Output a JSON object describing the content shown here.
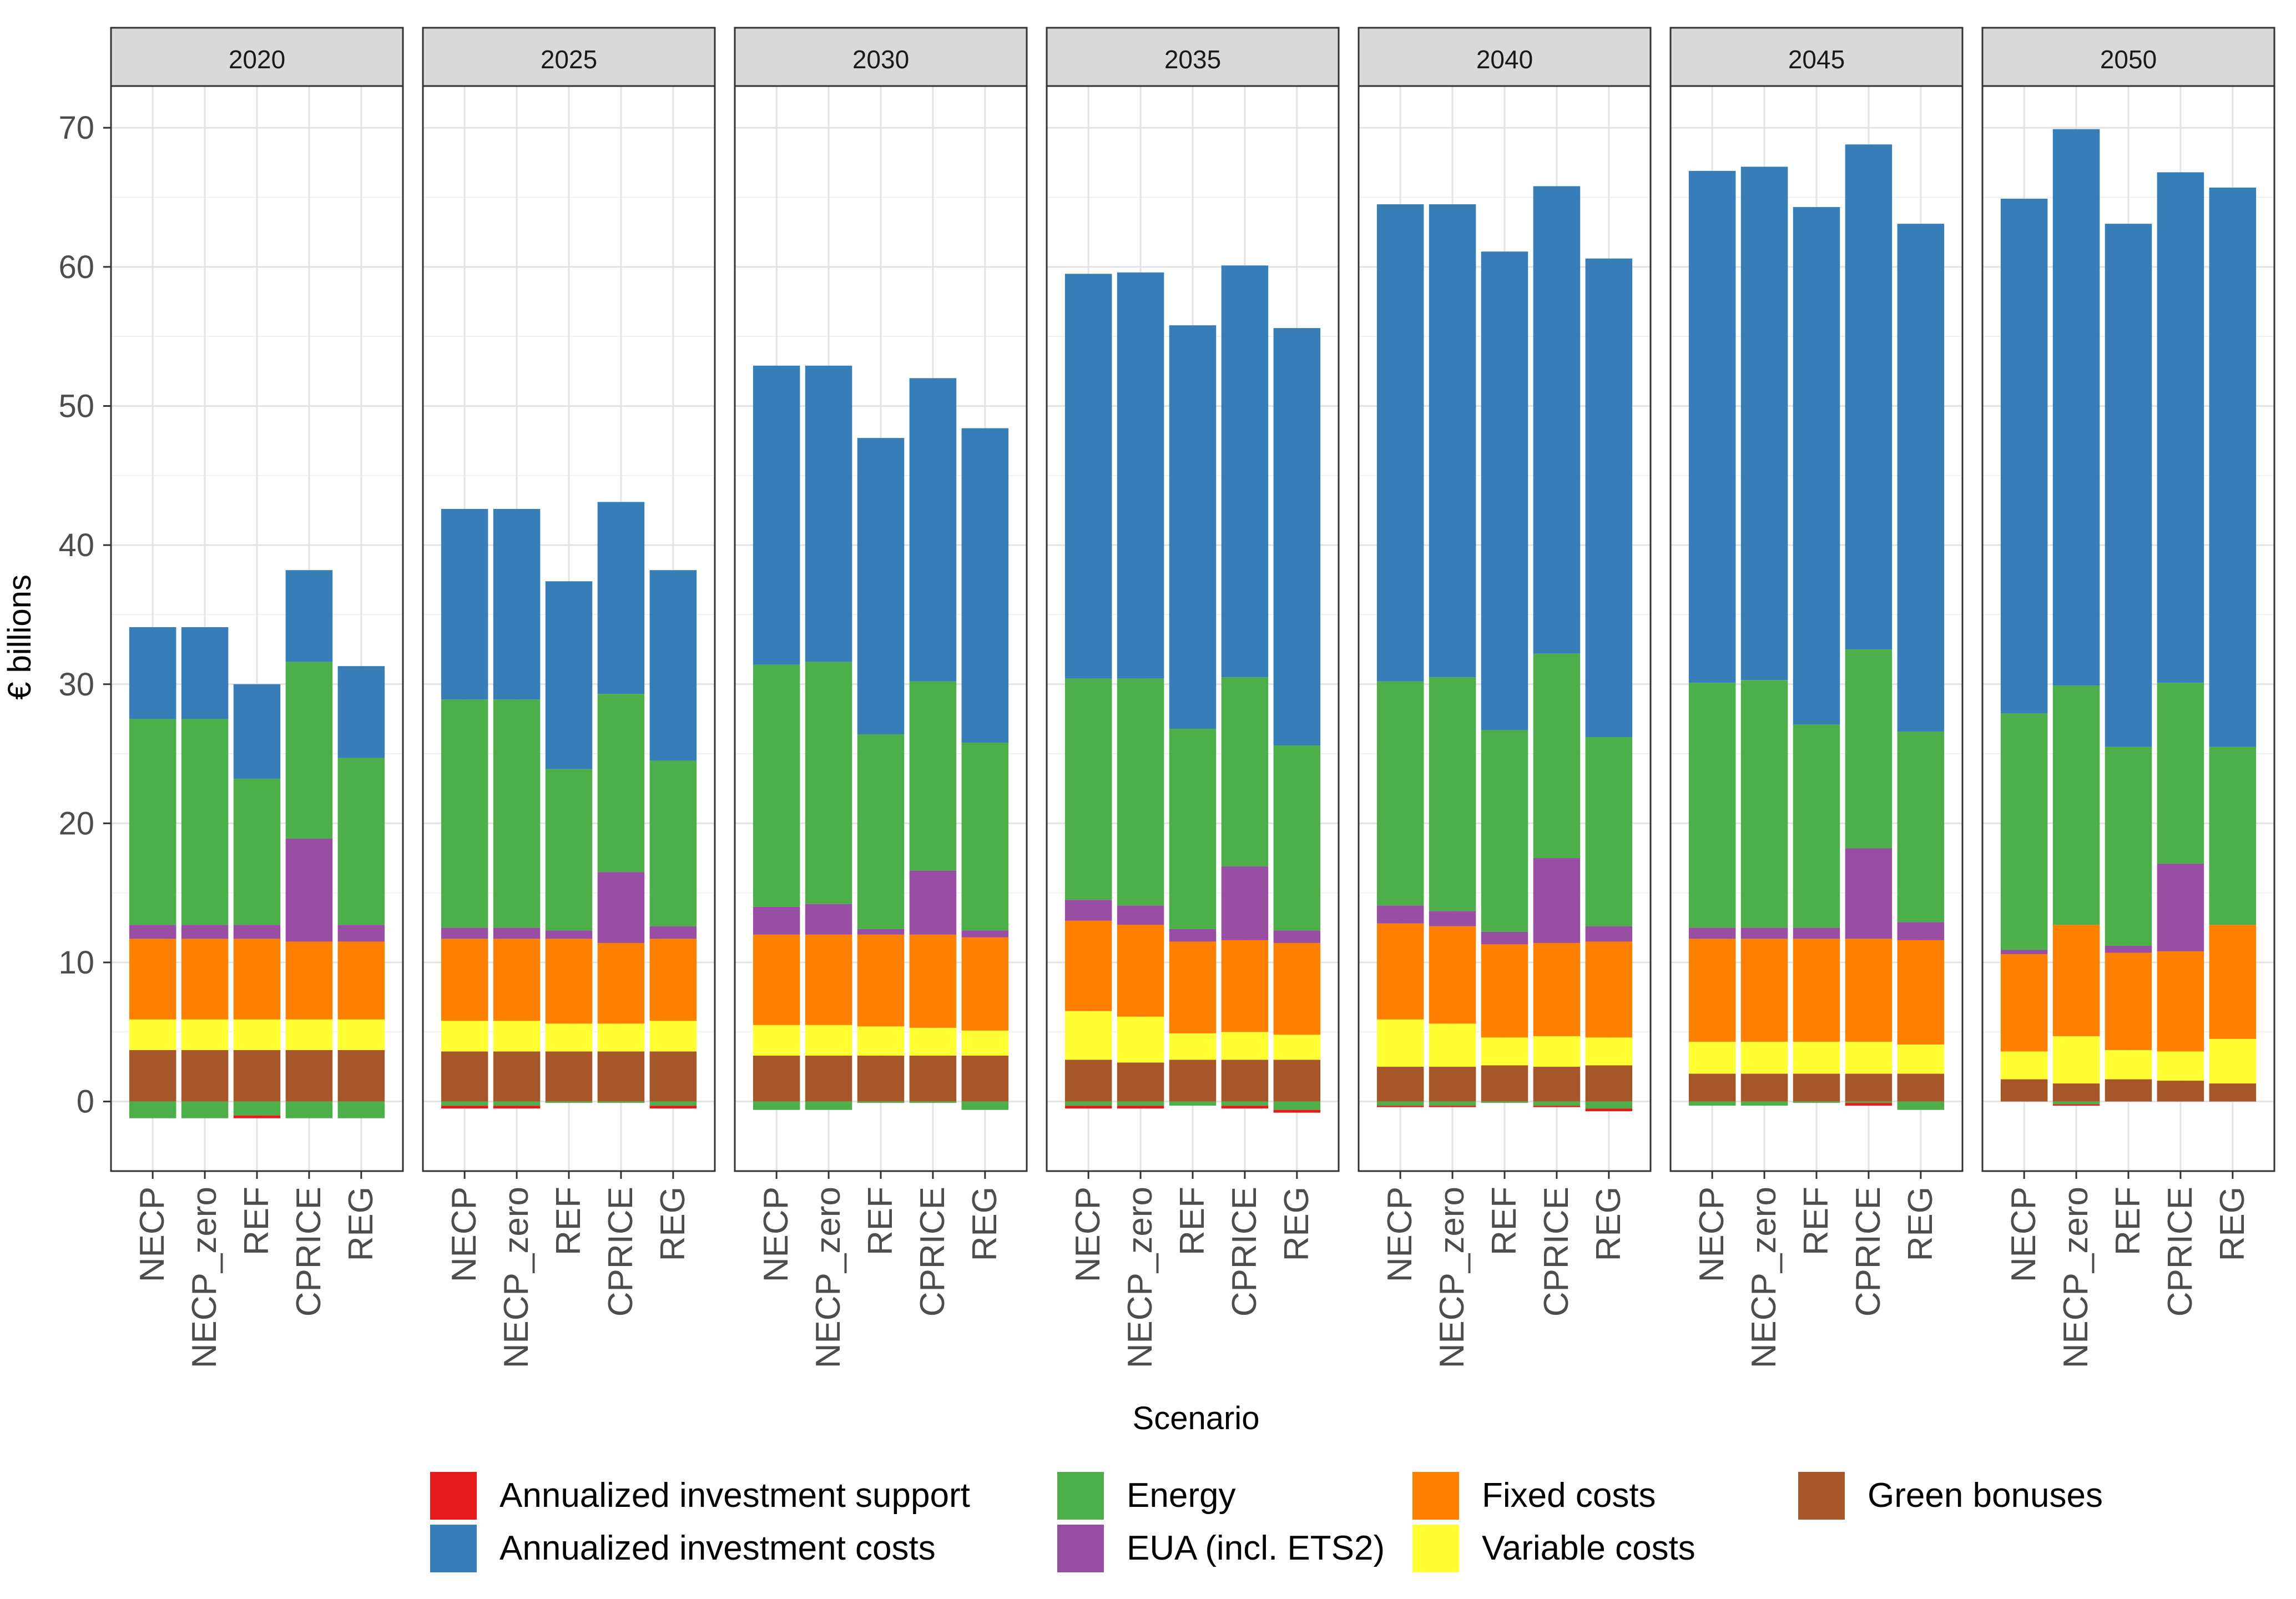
{
  "chart_data": {
    "type": "bar",
    "stacked": true,
    "faceted_by": "year",
    "ylabel": "€ billions",
    "xlabel": "Scenario",
    "ylim": [
      -5,
      73
    ],
    "yticks": [
      0,
      10,
      20,
      30,
      40,
      50,
      60,
      70
    ],
    "grid": true,
    "legend_position": "bottom",
    "panels": [
      "2020",
      "2025",
      "2030",
      "2035",
      "2040",
      "2045",
      "2050"
    ],
    "categories": [
      "NECP",
      "NECP_zero",
      "REF",
      "CPRICE",
      "REG"
    ],
    "legend": [
      {
        "key": "support",
        "label": "Annualized investment support",
        "color": "#e41a1c"
      },
      {
        "key": "inv",
        "label": "Annualized investment costs",
        "color": "#377eb8"
      },
      {
        "key": "energy",
        "label": "Energy",
        "color": "#4daf4a"
      },
      {
        "key": "eua",
        "label": "EUA (incl. ETS2)",
        "color": "#984ea3"
      },
      {
        "key": "fixed",
        "label": "Fixed costs",
        "color": "#ff7f00"
      },
      {
        "key": "variable",
        "label": "Variable costs",
        "color": "#ffff33"
      },
      {
        "key": "green",
        "label": "Green bonuses",
        "color": "#a65628"
      }
    ],
    "stack_order": [
      "green",
      "variable",
      "fixed",
      "eua",
      "energy",
      "inv"
    ],
    "negative_order": [
      "energy",
      "support"
    ],
    "values": {
      "2020": [
        {
          "green": 3.7,
          "variable": 2.2,
          "fixed": 5.8,
          "eua": 1.0,
          "energy": 14.8,
          "inv": 6.6,
          "neg_energy": -1.2,
          "neg_support": 0
        },
        {
          "green": 3.7,
          "variable": 2.2,
          "fixed": 5.8,
          "eua": 1.0,
          "energy": 14.8,
          "inv": 6.6,
          "neg_energy": -1.2,
          "neg_support": 0
        },
        {
          "green": 3.7,
          "variable": 2.2,
          "fixed": 5.8,
          "eua": 1.0,
          "energy": 10.5,
          "inv": 6.8,
          "neg_energy": -1.0,
          "neg_support": -0.2
        },
        {
          "green": 3.7,
          "variable": 2.2,
          "fixed": 5.6,
          "eua": 7.4,
          "energy": 12.7,
          "inv": 6.6,
          "neg_energy": -1.2,
          "neg_support": 0
        },
        {
          "green": 3.7,
          "variable": 2.2,
          "fixed": 5.6,
          "eua": 1.2,
          "energy": 12.0,
          "inv": 6.6,
          "neg_energy": -1.2,
          "neg_support": 0
        }
      ],
      "2025": [
        {
          "green": 3.6,
          "variable": 2.2,
          "fixed": 5.9,
          "eua": 0.8,
          "energy": 16.4,
          "inv": 13.7,
          "neg_energy": -0.3,
          "neg_support": -0.2
        },
        {
          "green": 3.6,
          "variable": 2.2,
          "fixed": 5.9,
          "eua": 0.8,
          "energy": 16.4,
          "inv": 13.7,
          "neg_energy": -0.3,
          "neg_support": -0.2
        },
        {
          "green": 3.6,
          "variable": 2.0,
          "fixed": 6.1,
          "eua": 0.6,
          "energy": 11.6,
          "inv": 13.5,
          "neg_energy": -0.1,
          "neg_support": 0
        },
        {
          "green": 3.6,
          "variable": 2.0,
          "fixed": 5.8,
          "eua": 5.1,
          "energy": 12.8,
          "inv": 13.8,
          "neg_energy": -0.1,
          "neg_support": 0
        },
        {
          "green": 3.6,
          "variable": 2.2,
          "fixed": 5.9,
          "eua": 0.9,
          "energy": 11.9,
          "inv": 13.7,
          "neg_energy": -0.3,
          "neg_support": -0.2
        }
      ],
      "2030": [
        {
          "green": 3.3,
          "variable": 2.2,
          "fixed": 6.5,
          "eua": 2.0,
          "energy": 17.4,
          "inv": 21.5,
          "neg_energy": -0.6,
          "neg_support": 0
        },
        {
          "green": 3.3,
          "variable": 2.2,
          "fixed": 6.5,
          "eua": 2.2,
          "energy": 17.4,
          "inv": 21.3,
          "neg_energy": -0.6,
          "neg_support": 0
        },
        {
          "green": 3.3,
          "variable": 2.1,
          "fixed": 6.6,
          "eua": 0.4,
          "energy": 14.0,
          "inv": 21.3,
          "neg_energy": -0.1,
          "neg_support": 0
        },
        {
          "green": 3.3,
          "variable": 2.0,
          "fixed": 6.7,
          "eua": 4.6,
          "energy": 13.6,
          "inv": 21.8,
          "neg_energy": -0.1,
          "neg_support": 0
        },
        {
          "green": 3.3,
          "variable": 1.8,
          "fixed": 6.7,
          "eua": 0.5,
          "energy": 13.5,
          "inv": 22.6,
          "neg_energy": -0.6,
          "neg_support": 0
        }
      ],
      "2035": [
        {
          "green": 3.0,
          "variable": 3.5,
          "fixed": 6.5,
          "eua": 1.5,
          "energy": 15.9,
          "inv": 29.1,
          "neg_energy": -0.3,
          "neg_support": -0.2
        },
        {
          "green": 2.8,
          "variable": 3.3,
          "fixed": 6.6,
          "eua": 1.4,
          "energy": 16.3,
          "inv": 29.2,
          "neg_energy": -0.3,
          "neg_support": -0.2
        },
        {
          "green": 3.0,
          "variable": 1.9,
          "fixed": 6.6,
          "eua": 0.9,
          "energy": 14.4,
          "inv": 29.0,
          "neg_energy": -0.3,
          "neg_support": 0
        },
        {
          "green": 3.0,
          "variable": 2.0,
          "fixed": 6.6,
          "eua": 5.3,
          "energy": 13.6,
          "inv": 29.6,
          "neg_energy": -0.3,
          "neg_support": -0.2
        },
        {
          "green": 3.0,
          "variable": 1.8,
          "fixed": 6.6,
          "eua": 0.9,
          "energy": 13.3,
          "inv": 30.0,
          "neg_energy": -0.6,
          "neg_support": -0.2
        }
      ],
      "2040": [
        {
          "green": 2.5,
          "variable": 3.4,
          "fixed": 6.9,
          "eua": 1.3,
          "energy": 16.1,
          "inv": 34.3,
          "neg_energy": -0.3,
          "neg_support": -0.1
        },
        {
          "green": 2.5,
          "variable": 3.1,
          "fixed": 7.0,
          "eua": 1.1,
          "energy": 16.8,
          "inv": 34.0,
          "neg_energy": -0.3,
          "neg_support": -0.1
        },
        {
          "green": 2.6,
          "variable": 2.0,
          "fixed": 6.7,
          "eua": 0.9,
          "energy": 14.5,
          "inv": 34.4,
          "neg_energy": -0.1,
          "neg_support": 0
        },
        {
          "green": 2.5,
          "variable": 2.2,
          "fixed": 6.7,
          "eua": 6.1,
          "energy": 14.7,
          "inv": 33.6,
          "neg_energy": -0.3,
          "neg_support": -0.1
        },
        {
          "green": 2.6,
          "variable": 2.0,
          "fixed": 6.9,
          "eua": 1.1,
          "energy": 13.6,
          "inv": 34.4,
          "neg_energy": -0.5,
          "neg_support": -0.2
        }
      ],
      "2045": [
        {
          "green": 2.0,
          "variable": 2.3,
          "fixed": 7.4,
          "eua": 0.8,
          "energy": 17.6,
          "inv": 36.8,
          "neg_energy": -0.3,
          "neg_support": 0
        },
        {
          "green": 2.0,
          "variable": 2.3,
          "fixed": 7.4,
          "eua": 0.8,
          "energy": 17.8,
          "inv": 36.9,
          "neg_energy": -0.3,
          "neg_support": 0
        },
        {
          "green": 2.0,
          "variable": 2.3,
          "fixed": 7.4,
          "eua": 0.8,
          "energy": 14.6,
          "inv": 37.2,
          "neg_energy": -0.1,
          "neg_support": 0
        },
        {
          "green": 2.0,
          "variable": 2.3,
          "fixed": 7.4,
          "eua": 6.5,
          "energy": 14.3,
          "inv": 36.3,
          "neg_energy": -0.1,
          "neg_support": -0.2
        },
        {
          "green": 2.0,
          "variable": 2.1,
          "fixed": 7.5,
          "eua": 1.3,
          "energy": 13.7,
          "inv": 36.5,
          "neg_energy": -0.6,
          "neg_support": 0
        }
      ],
      "2050": [
        {
          "green": 1.6,
          "variable": 2.0,
          "fixed": 7.0,
          "eua": 0.3,
          "energy": 17.0,
          "inv": 37.0,
          "neg_energy": 0,
          "neg_support": 0
        },
        {
          "green": 1.3,
          "variable": 3.4,
          "fixed": 8.0,
          "eua": 0,
          "energy": 17.2,
          "inv": 40.0,
          "neg_energy": -0.2,
          "neg_support": -0.1
        },
        {
          "green": 1.6,
          "variable": 2.1,
          "fixed": 7.0,
          "eua": 0.5,
          "energy": 14.3,
          "inv": 37.6,
          "neg_energy": 0,
          "neg_support": 0
        },
        {
          "green": 1.5,
          "variable": 2.1,
          "fixed": 7.2,
          "eua": 6.3,
          "energy": 13.0,
          "inv": 36.7,
          "neg_energy": 0,
          "neg_support": 0
        },
        {
          "green": 1.3,
          "variable": 3.2,
          "fixed": 8.2,
          "eua": 0,
          "energy": 12.8,
          "inv": 40.2,
          "neg_energy": 0,
          "neg_support": 0
        }
      ]
    }
  }
}
